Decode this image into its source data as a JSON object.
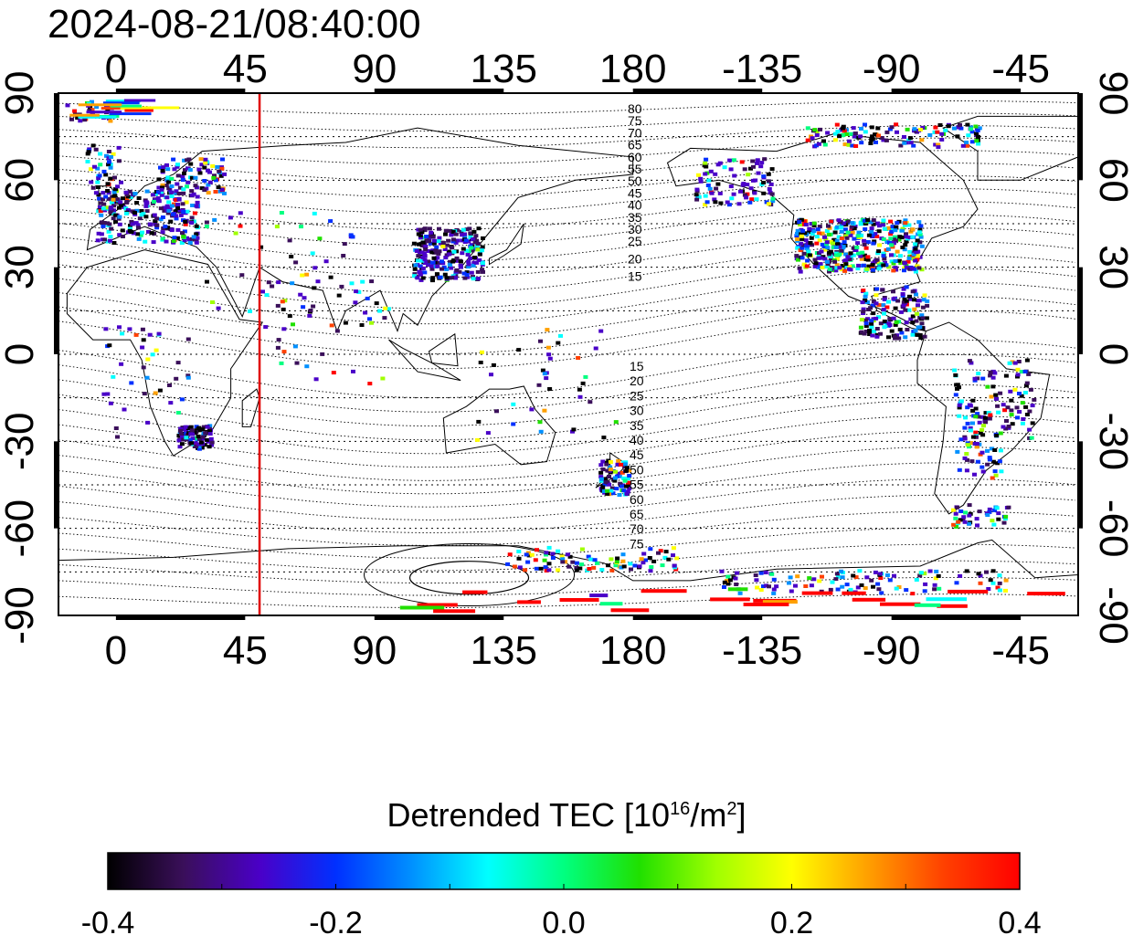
{
  "title": "2024-08-21/08:40:00",
  "map": {
    "lon_ticks": [
      "0",
      "45",
      "90",
      "135",
      "180",
      "-135",
      "-90",
      "-45"
    ],
    "lat_ticks_left": [
      "90",
      "60",
      "30",
      "0",
      "-30",
      "-60",
      "-90"
    ],
    "lat_ticks_right": [
      "90",
      "60",
      "30",
      "0",
      "-30",
      "-60",
      "-90"
    ],
    "lon_range": [
      -20,
      335
    ],
    "lat_range": [
      -90,
      90
    ],
    "terminator_lon": 50,
    "terminator_color": "#e00000",
    "contour_labels_north": [
      "80",
      "75",
      "70",
      "65",
      "60",
      "55",
      "50",
      "45",
      "40",
      "35",
      "30",
      "25",
      "20",
      "15"
    ],
    "contour_labels_south": [
      "15",
      "20",
      "25",
      "30",
      "35",
      "40",
      "45",
      "50",
      "55",
      "60",
      "65",
      "70",
      "75"
    ],
    "grid": "dotted"
  },
  "colorbar": {
    "title_main": "Detrended TEC  [10",
    "title_exp": "16",
    "title_unit": "/m",
    "title_exp2": "2",
    "title_end": "]",
    "tick_labels": [
      "-0.4",
      "-0.2",
      "0.0",
      "0.2",
      "0.4"
    ],
    "range": [
      -0.4,
      0.4
    ],
    "colors": [
      "#000000",
      "#3a0f5a",
      "#4a00c8",
      "#0030ff",
      "#0090ff",
      "#00ffff",
      "#00ff80",
      "#20e000",
      "#a0ff00",
      "#ffff00",
      "#ffa000",
      "#ff4000",
      "#ff0000"
    ]
  }
}
